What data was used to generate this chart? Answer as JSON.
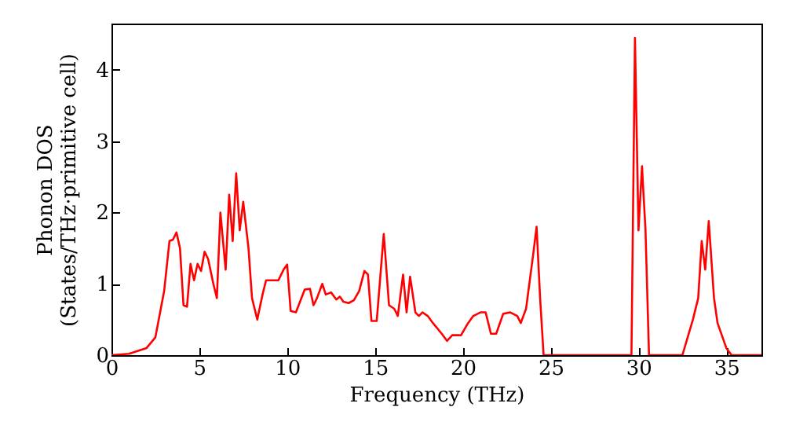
{
  "chart_data": {
    "type": "line",
    "xlabel": "Frequency (THz)",
    "ylabel": "Phonon DOS\n(States/THz·primitive cell)",
    "x": [
      0,
      1,
      2,
      2.5,
      3.0,
      3.3,
      3.5,
      3.7,
      3.9,
      4.1,
      4.3,
      4.5,
      4.7,
      4.9,
      5.1,
      5.3,
      5.5,
      5.8,
      6.0,
      6.2,
      6.5,
      6.7,
      6.9,
      7.1,
      7.3,
      7.5,
      7.8,
      8.0,
      8.3,
      8.6,
      8.8,
      9.2,
      9.5,
      9.8,
      10.0,
      10.2,
      10.5,
      11.0,
      11.3,
      11.5,
      11.7,
      12.0,
      12.2,
      12.5,
      12.8,
      13.0,
      13.2,
      13.5,
      13.8,
      14.1,
      14.4,
      14.6,
      14.8,
      15.1,
      15.5,
      15.8,
      16.1,
      16.3,
      16.6,
      16.8,
      17.0,
      17.3,
      17.5,
      17.7,
      18.0,
      18.3,
      18.8,
      19.1,
      19.4,
      19.9,
      20.3,
      20.6,
      21.0,
      21.3,
      21.6,
      21.9,
      22.3,
      22.7,
      23.1,
      23.3,
      23.6,
      24.0,
      24.2,
      24.4,
      24.6,
      29.6,
      29.8,
      30.0,
      30.2,
      30.4,
      30.6,
      32.5,
      33.1,
      33.4,
      33.6,
      33.8,
      34.0,
      34.3,
      34.5,
      35.0,
      35.3,
      37
    ],
    "series": [
      {
        "color": "#ff0000",
        "values": [
          0,
          0.02,
          0.1,
          0.25,
          0.9,
          1.6,
          1.62,
          1.72,
          1.5,
          0.7,
          0.68,
          1.28,
          1.05,
          1.28,
          1.18,
          1.45,
          1.35,
          1.0,
          0.8,
          2.0,
          1.2,
          2.25,
          1.6,
          2.55,
          1.75,
          2.15,
          1.5,
          0.8,
          0.5,
          0.85,
          1.05,
          1.05,
          1.05,
          1.2,
          1.27,
          0.62,
          0.6,
          0.92,
          0.93,
          0.7,
          0.8,
          1.0,
          0.85,
          0.88,
          0.78,
          0.82,
          0.75,
          0.73,
          0.77,
          0.9,
          1.18,
          1.13,
          0.48,
          0.48,
          1.7,
          0.7,
          0.65,
          0.55,
          1.13,
          0.6,
          1.1,
          0.6,
          0.55,
          0.6,
          0.55,
          0.45,
          0.3,
          0.2,
          0.28,
          0.28,
          0.45,
          0.55,
          0.6,
          0.6,
          0.3,
          0.3,
          0.58,
          0.6,
          0.55,
          0.45,
          0.65,
          1.4,
          1.8,
          0.8,
          0,
          0,
          4.45,
          1.75,
          2.65,
          1.75,
          0,
          0,
          0.5,
          0.8,
          1.6,
          1.2,
          1.88,
          0.8,
          0.45,
          0.1,
          0,
          0
        ]
      }
    ],
    "xlim": [
      0,
      37
    ],
    "ylim": [
      0,
      4.65
    ],
    "xticks": [
      0,
      5,
      10,
      15,
      20,
      25,
      30,
      35
    ],
    "yticks": [
      0,
      1,
      2,
      3,
      4
    ],
    "grid": false,
    "line_style": "solid",
    "marker": "none"
  }
}
